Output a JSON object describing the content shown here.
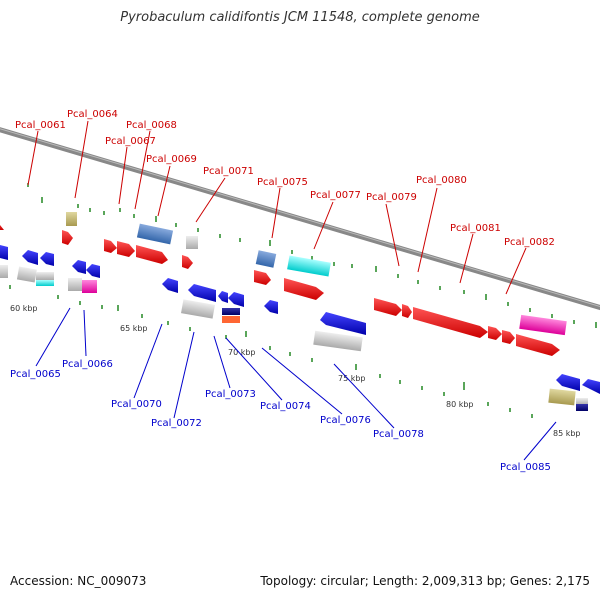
{
  "title": "Pyrobaculum calidifontis JCM 11548, complete genome",
  "accession": "Accession: NC_009073",
  "topology": "Topology: circular; Length: 2,009,313 bp; Genes: 2,175",
  "colors": {
    "top_label": "#cc0000",
    "bottom_label": "#0000cc",
    "backbone": "#888888",
    "tick": "#228822"
  },
  "scale_labels": [
    "60 kbp",
    "65 kbp",
    "70 kbp",
    "75 kbp",
    "80 kbp",
    "85 kbp"
  ],
  "genes_top": [
    "Pcal_0061",
    "Pcal_0064",
    "Pcal_0067",
    "Pcal_0068",
    "Pcal_0069",
    "Pcal_0071",
    "Pcal_0075",
    "Pcal_0077",
    "Pcal_0079",
    "Pcal_0080",
    "Pcal_0081",
    "Pcal_0082"
  ],
  "genes_bottom": [
    "Pcal_0065",
    "Pcal_0066",
    "Pcal_0070",
    "Pcal_0072",
    "Pcal_0073",
    "Pcal_0074",
    "Pcal_0076",
    "Pcal_0078",
    "Pcal_0085"
  ]
}
